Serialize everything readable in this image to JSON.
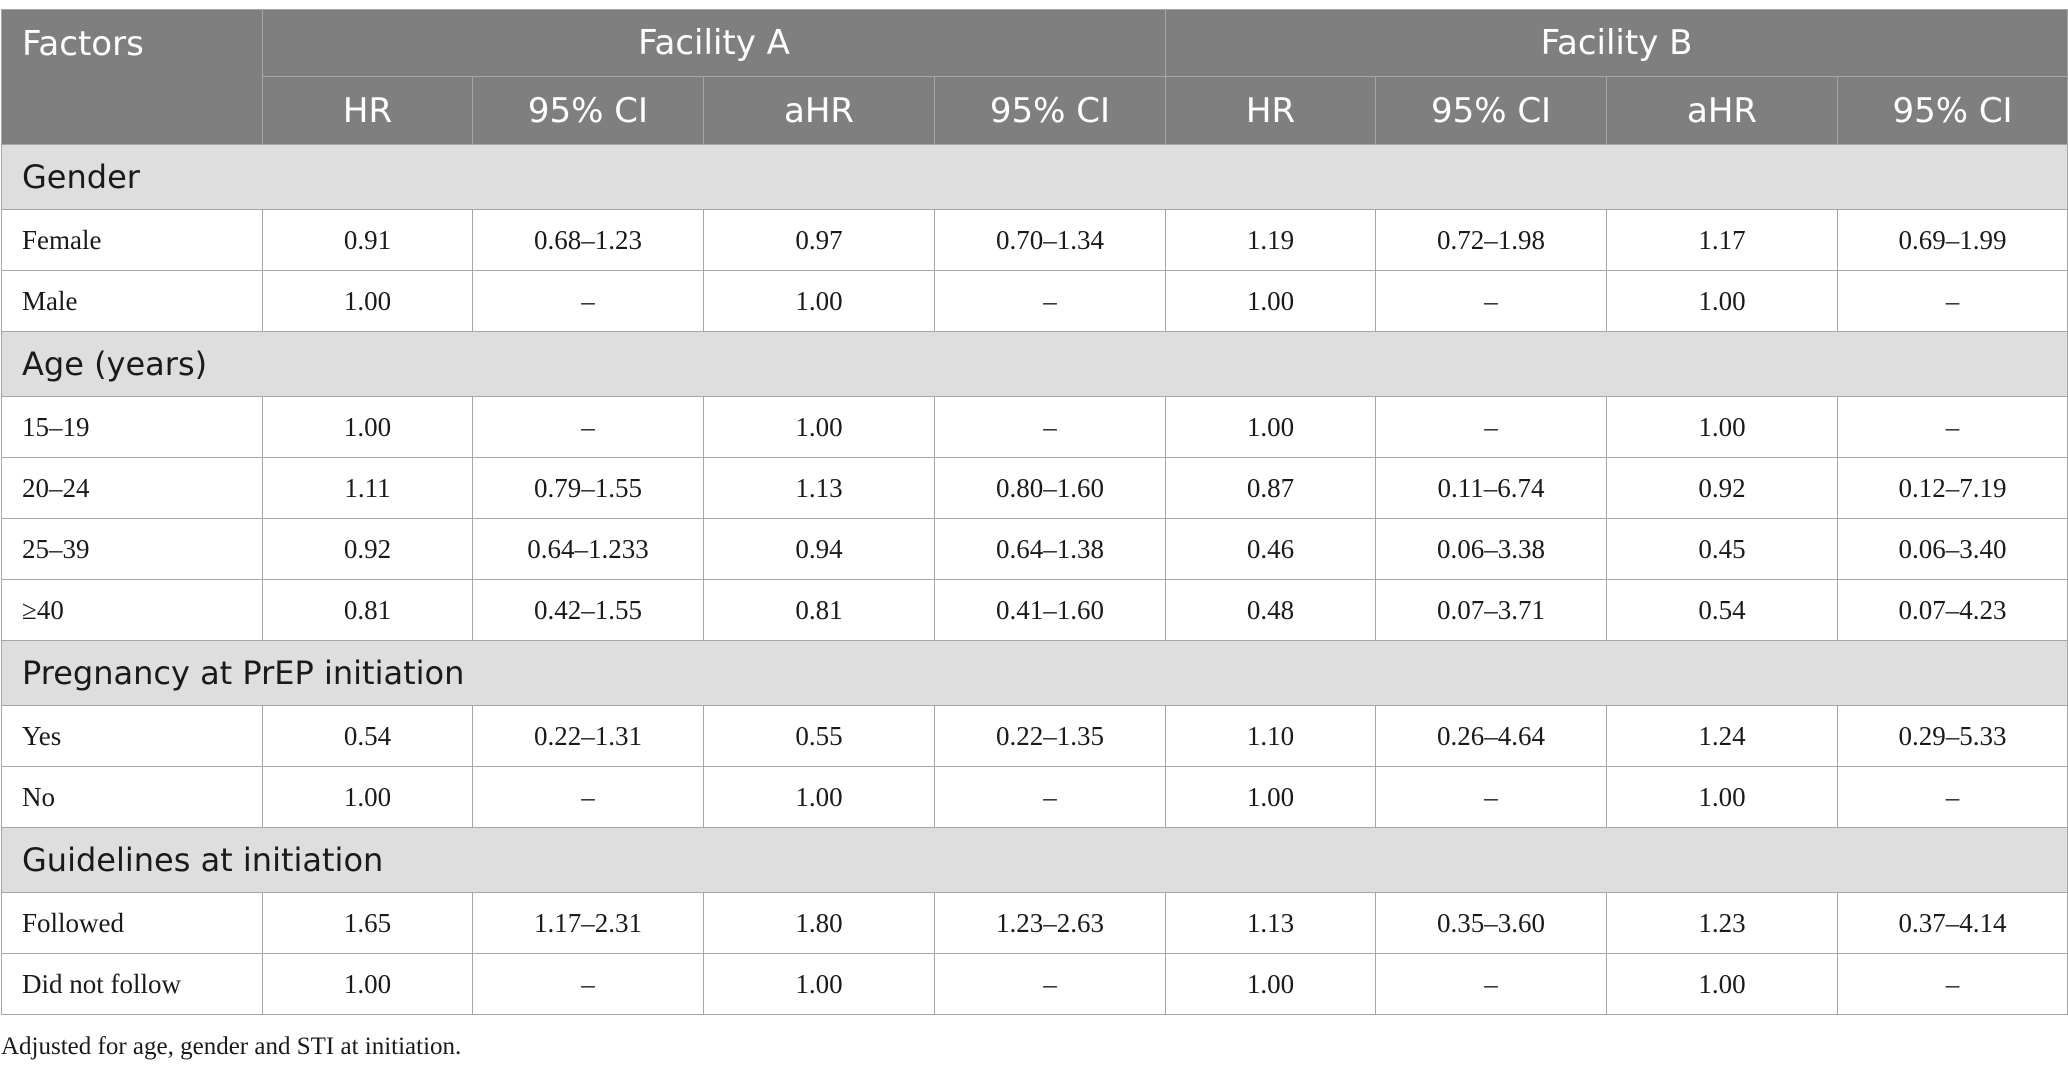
{
  "table": {
    "header": {
      "factors": "Factors",
      "facility_a": "Facility A",
      "facility_b": "Facility B",
      "subcolumns": [
        "HR",
        "95% CI",
        "aHR",
        "95% CI",
        "HR",
        "95% CI",
        "aHR",
        "95% CI"
      ]
    },
    "sections": [
      {
        "title": "Gender",
        "rows": [
          {
            "label": "Female",
            "cells": [
              "0.91",
              "0.68–1.23",
              "0.97",
              "0.70–1.34",
              "1.19",
              "0.72–1.98",
              "1.17",
              "0.69–1.99"
            ]
          },
          {
            "label": "Male",
            "cells": [
              "1.00",
              "–",
              "1.00",
              "–",
              "1.00",
              "–",
              "1.00",
              "–"
            ]
          }
        ]
      },
      {
        "title": "Age (years)",
        "rows": [
          {
            "label": "15–19",
            "cells": [
              "1.00",
              "–",
              "1.00",
              "–",
              "1.00",
              "–",
              "1.00",
              "–"
            ]
          },
          {
            "label": "20–24",
            "cells": [
              "1.11",
              "0.79–1.55",
              "1.13",
              "0.80–1.60",
              "0.87",
              "0.11–6.74",
              "0.92",
              "0.12–7.19"
            ]
          },
          {
            "label": "25–39",
            "cells": [
              "0.92",
              "0.64–1.233",
              "0.94",
              "0.64–1.38",
              "0.46",
              "0.06–3.38",
              "0.45",
              "0.06–3.40"
            ]
          },
          {
            "label": "≥40",
            "cells": [
              "0.81",
              "0.42–1.55",
              "0.81",
              "0.41–1.60",
              "0.48",
              "0.07–3.71",
              "0.54",
              "0.07–4.23"
            ]
          }
        ]
      },
      {
        "title": "Pregnancy at PrEP initiation",
        "rows": [
          {
            "label": "Yes",
            "cells": [
              "0.54",
              "0.22–1.31",
              "0.55",
              "0.22–1.35",
              "1.10",
              "0.26–4.64",
              "1.24",
              "0.29–5.33"
            ]
          },
          {
            "label": "No",
            "cells": [
              "1.00",
              "–",
              "1.00",
              "–",
              "1.00",
              "–",
              "1.00",
              "–"
            ]
          }
        ]
      },
      {
        "title": "Guidelines at initiation",
        "rows": [
          {
            "label": "Followed",
            "cells": [
              "1.65",
              "1.17–2.31",
              "1.80",
              "1.23–2.63",
              "1.13",
              "0.35–3.60",
              "1.23",
              "0.37–4.14"
            ]
          },
          {
            "label": "Did not follow",
            "cells": [
              "1.00",
              "–",
              "1.00",
              "–",
              "1.00",
              "–",
              "1.00",
              "–"
            ]
          }
        ]
      }
    ]
  },
  "footnote": "Adjusted for age, gender and STI at initiation.",
  "colors": {
    "header_bg": "#7f7f7f",
    "section_bg": "#dedede",
    "border": "#a6a6a6"
  }
}
